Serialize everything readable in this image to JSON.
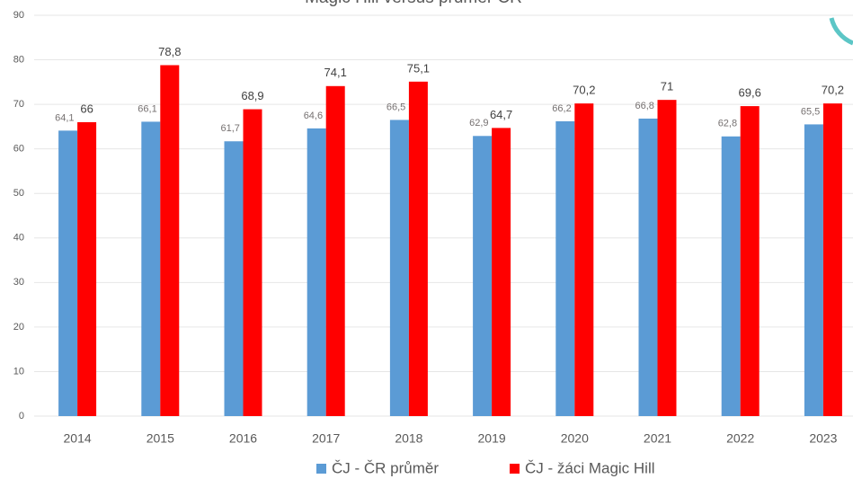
{
  "chart_data": {
    "type": "bar",
    "title": "Magic Hill versus průměr ČR",
    "categories": [
      "2014",
      "2015",
      "2016",
      "2017",
      "2018",
      "2019",
      "2020",
      "2021",
      "2022",
      "2023"
    ],
    "series": [
      {
        "name": "ČJ - ČR průměr",
        "color": "#5b9bd5",
        "values": [
          64.1,
          66.1,
          61.7,
          64.6,
          66.5,
          62.9,
          66.2,
          66.8,
          62.8,
          65.5
        ],
        "value_labels": [
          "64,1",
          "66,1",
          "61,7",
          "64,6",
          "66,5",
          "62,9",
          "66,2",
          "66,8",
          "62,8",
          "65,5"
        ]
      },
      {
        "name": "ČJ - žáci Magic Hill",
        "color": "#ff0000",
        "values": [
          66,
          78.8,
          68.9,
          74.1,
          75.1,
          64.7,
          70.2,
          71,
          69.6,
          70.2
        ],
        "value_labels": [
          "66",
          "78,8",
          "68,9",
          "74,1",
          "75,1",
          "64,7",
          "70,2",
          "71",
          "69,6",
          "70,2"
        ]
      }
    ],
    "ylim": [
      0,
      90
    ],
    "yticks": [
      0,
      10,
      20,
      30,
      40,
      50,
      60,
      70,
      80,
      90
    ],
    "grid": true,
    "legend": "bottom"
  }
}
